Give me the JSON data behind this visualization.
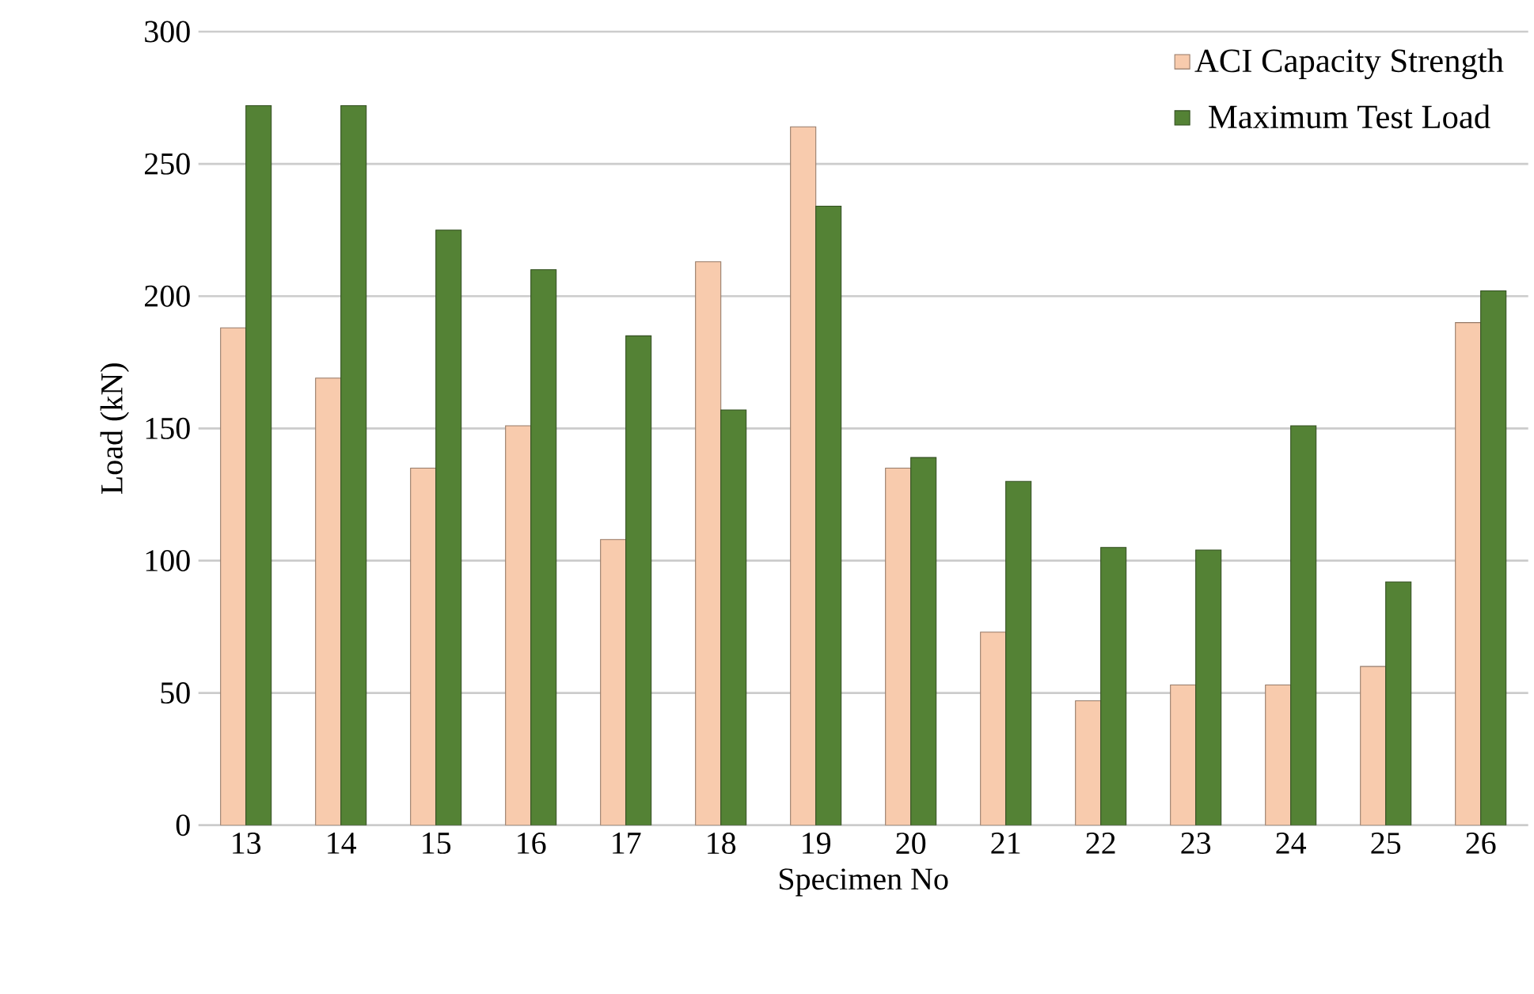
{
  "chart_data": {
    "type": "bar",
    "xlabel": "Specimen No",
    "ylabel": "Load (kN)",
    "categories": [
      "13",
      "14",
      "15",
      "16",
      "17",
      "18",
      "19",
      "20",
      "21",
      "22",
      "23",
      "24",
      "25",
      "26"
    ],
    "series": [
      {
        "name": "ACI Capacity Strength",
        "color": "#f8cbad",
        "values": [
          188,
          169,
          135,
          151,
          108,
          213,
          264,
          135,
          73,
          47,
          53,
          53,
          60,
          190
        ]
      },
      {
        "name": "Maximum Test Load",
        "color": "#548235",
        "values": [
          272,
          272,
          225,
          210,
          185,
          157,
          234,
          139,
          130,
          105,
          104,
          151,
          92,
          202
        ]
      }
    ],
    "ylim": [
      0,
      300
    ],
    "yticks": [
      0,
      50,
      100,
      150,
      200,
      250,
      300
    ],
    "grid": "y",
    "legend": "top right"
  }
}
